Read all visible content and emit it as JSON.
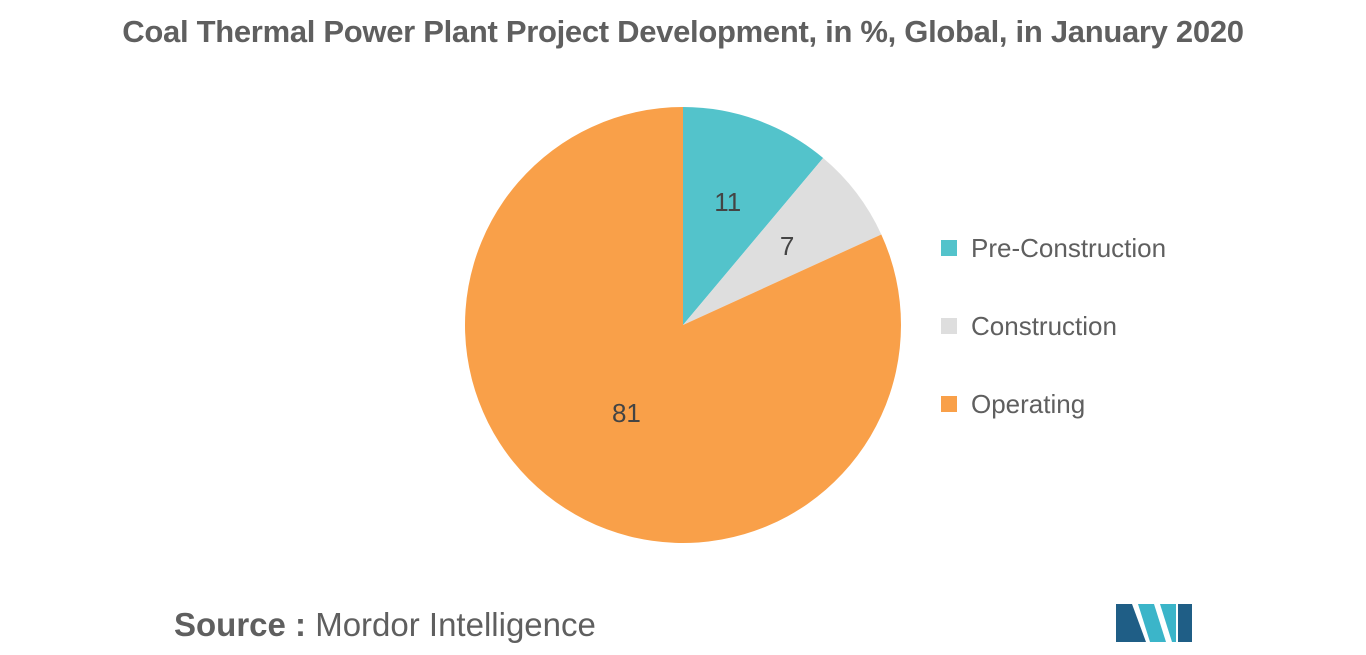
{
  "title": "Coal Thermal Power Plant Project Development, in %, Global, in January 2020",
  "chart_data": {
    "type": "pie",
    "title": "Coal Thermal Power Plant Project Development, in %, Global, in January 2020",
    "categories": [
      "Pre-Construction",
      "Construction",
      "Operating"
    ],
    "values": [
      11,
      7,
      81
    ],
    "data_labels": [
      "11",
      "7",
      "81"
    ],
    "colors": [
      "#53c3cb",
      "#dedede",
      "#f9a049"
    ],
    "start_angle_deg": 0,
    "direction": "clockwise",
    "legend_position": "right"
  },
  "source": {
    "label": "Source :",
    "text": "Mordor Intelligence"
  },
  "logo": {
    "name": "mordor-intelligence-logo",
    "colors": [
      "#1f5e86",
      "#3bb5c9"
    ]
  }
}
